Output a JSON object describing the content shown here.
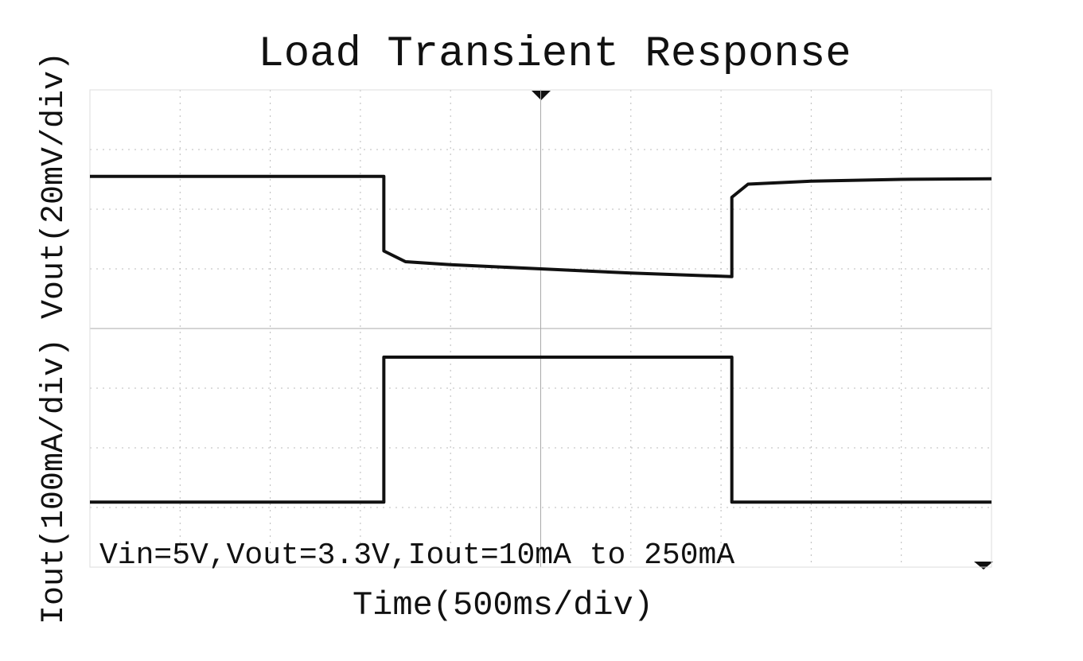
{
  "chart_data": {
    "type": "line",
    "title": "Load Transient Response",
    "y_label": "Iout(100mA/div) Vout(20mV/div)",
    "x_label": "Time(500ms/div)",
    "annotation": "Vin=5V,Vout=3.3V,Iout=10mA to 250mA",
    "xlim": [
      0,
      10
    ],
    "ylim": [
      0,
      8
    ],
    "grid": true,
    "series": [
      {
        "name": "Vout",
        "color": "#111111",
        "x": [
          0,
          3.26,
          3.26,
          3.5,
          4,
          5,
          6,
          7.12,
          7.12,
          7.3,
          8,
          9,
          10
        ],
        "values": [
          6.55,
          6.55,
          5.3,
          5.12,
          5.07,
          5.0,
          4.93,
          4.87,
          6.2,
          6.42,
          6.47,
          6.5,
          6.51
        ]
      },
      {
        "name": "Iout",
        "color": "#111111",
        "x": [
          0,
          3.26,
          3.26,
          7.12,
          7.12,
          10
        ],
        "values": [
          1.09,
          1.09,
          3.52,
          3.52,
          1.09,
          1.09
        ]
      }
    ]
  }
}
